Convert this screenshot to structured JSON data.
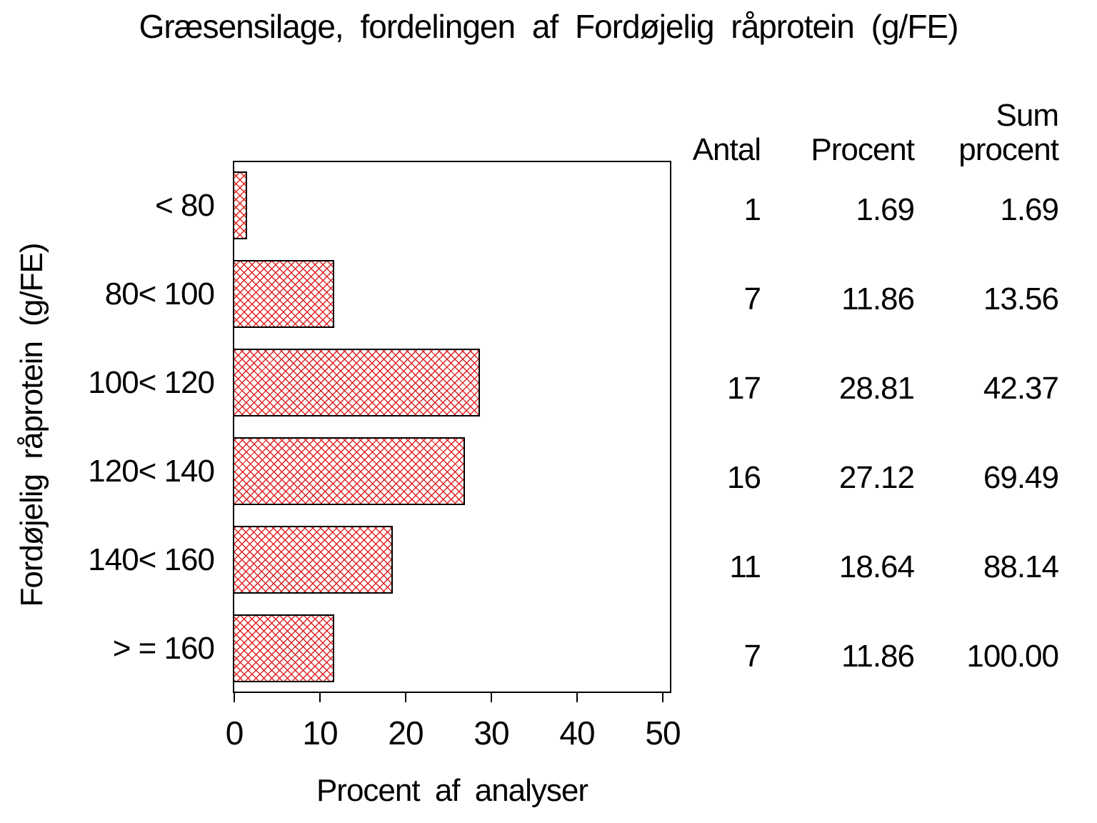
{
  "chart_data": {
    "type": "bar",
    "orientation": "horizontal",
    "title": "Græsensilage, fordelingen af Fordøjelig råprotein (g/FE)",
    "xlabel": "Procent af analyser",
    "ylabel": "Fordøjelig råprotein (g/FE)",
    "categories": [
      "< 80",
      "80< 100",
      "100< 120",
      "120< 140",
      "140< 160",
      "> = 160"
    ],
    "bar_values": [
      1.69,
      11.86,
      28.81,
      27.12,
      18.64,
      11.86
    ],
    "xlim": [
      0,
      50
    ],
    "xticks": [
      "0",
      "10",
      "20",
      "30",
      "40",
      "50"
    ],
    "grid": false,
    "bar_fill": "red-crosshatch",
    "bar_color": "#e02020",
    "series": [
      {
        "name": "Antal",
        "values": [
          1,
          7,
          17,
          16,
          11,
          7
        ]
      },
      {
        "name": "Procent",
        "values": [
          1.69,
          11.86,
          28.81,
          27.12,
          18.64,
          11.86
        ]
      },
      {
        "name": "Sum procent",
        "values": [
          1.69,
          13.56,
          42.37,
          69.49,
          88.14,
          100.0
        ]
      }
    ],
    "table": {
      "col1_header": "Antal",
      "col2_header": "Procent",
      "col3_header_line1": "Sum",
      "col3_header_line2": "procent",
      "rows": [
        [
          "1",
          "1.69",
          "1.69"
        ],
        [
          "7",
          "11.86",
          "13.56"
        ],
        [
          "17",
          "28.81",
          "42.37"
        ],
        [
          "16",
          "27.12",
          "69.49"
        ],
        [
          "11",
          "18.64",
          "88.14"
        ],
        [
          "7",
          "11.86",
          "100.00"
        ]
      ]
    }
  }
}
